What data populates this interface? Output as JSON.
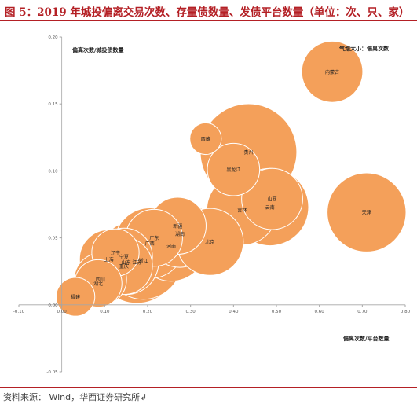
{
  "figure": {
    "title": "图 5：2019 年城投偏离交易次数、存量债数量、发债平台数量（单位：次、只、家）",
    "source": "资料来源：   Wind，华西证券研究所↲"
  },
  "colors": {
    "title": "#b42025",
    "bubble": "#f4a05a",
    "bubble_stroke": "#ffffff",
    "axis": "#a6a6a6"
  },
  "chart_data": {
    "type": "scatter",
    "encoding": "bubble",
    "xlabel": "偏离次数/平台数量",
    "ylabel": "偏离次数/城投债数量",
    "size_label": "气泡大小：偏离次数",
    "xlim": [
      -0.1,
      0.8
    ],
    "ylim": [
      -0.05,
      0.2
    ],
    "xticks": [
      "-0.10",
      "0.00",
      "0.10",
      "0.20",
      "0.30",
      "0.40",
      "0.50",
      "0.60",
      "0.70",
      "0.80"
    ],
    "yticks": [
      "-0.05",
      "0.00",
      "0.05",
      "0.10",
      "0.15",
      "0.20"
    ],
    "grid": false,
    "points": [
      {
        "label": "内蒙古",
        "x": 0.63,
        "y": 0.174,
        "size": 30
      },
      {
        "label": "西藏",
        "x": 0.335,
        "y": 0.124,
        "size": 8
      },
      {
        "label": "贵州",
        "x": 0.435,
        "y": 0.114,
        "size": 75
      },
      {
        "label": "黑龙江",
        "x": 0.4,
        "y": 0.101,
        "size": 22
      },
      {
        "label": "山西",
        "x": 0.49,
        "y": 0.079,
        "size": 30
      },
      {
        "label": "云南",
        "x": 0.485,
        "y": 0.073,
        "size": 48
      },
      {
        "label": "吉林",
        "x": 0.42,
        "y": 0.071,
        "size": 40
      },
      {
        "label": "天津",
        "x": 0.71,
        "y": 0.069,
        "size": 50
      },
      {
        "label": "新疆",
        "x": 0.27,
        "y": 0.059,
        "size": 26
      },
      {
        "label": "湖南",
        "x": 0.275,
        "y": 0.053,
        "size": 36
      },
      {
        "label": "北京",
        "x": 0.345,
        "y": 0.047,
        "size": 36
      },
      {
        "label": "河南",
        "x": 0.255,
        "y": 0.044,
        "size": 40
      },
      {
        "label": "广东",
        "x": 0.215,
        "y": 0.05,
        "size": 26
      },
      {
        "label": "广西",
        "x": 0.205,
        "y": 0.046,
        "size": 40
      },
      {
        "label": "辽宁",
        "x": 0.125,
        "y": 0.039,
        "size": 18
      },
      {
        "label": "宁夏",
        "x": 0.145,
        "y": 0.036,
        "size": 26
      },
      {
        "label": "上海",
        "x": 0.11,
        "y": 0.034,
        "size": 28
      },
      {
        "label": "江苏",
        "x": 0.175,
        "y": 0.032,
        "size": 55
      },
      {
        "label": "浙江",
        "x": 0.19,
        "y": 0.033,
        "size": 48
      },
      {
        "label": "重庆",
        "x": 0.145,
        "y": 0.029,
        "size": 26
      },
      {
        "label": "山东",
        "x": 0.15,
        "y": 0.032,
        "size": 34
      },
      {
        "label": "四川",
        "x": 0.09,
        "y": 0.019,
        "size": 22
      },
      {
        "label": "湖北",
        "x": 0.085,
        "y": 0.016,
        "size": 18
      },
      {
        "label": "福建",
        "x": 0.032,
        "y": 0.006,
        "size": 12
      }
    ]
  }
}
